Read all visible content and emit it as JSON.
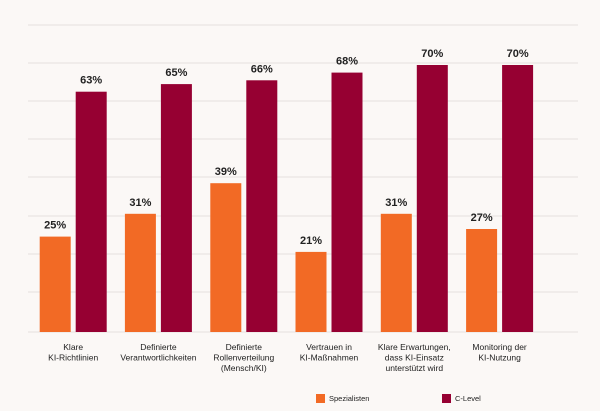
{
  "chart_data": {
    "type": "bar",
    "categories": [
      [
        "Klare",
        "KI-Richtlinien"
      ],
      [
        "Definierte",
        "Verantwortlichkeiten"
      ],
      [
        "Definierte",
        "Rollenverteilung",
        "(Mensch/KI)"
      ],
      [
        "Vertrauen in",
        "KI-Maßnahmen"
      ],
      [
        "Klare Erwartungen,",
        "dass KI-Einsatz",
        "unterstützt wird"
      ],
      [
        "Monitoring der",
        "KI-Nutzung"
      ]
    ],
    "series": [
      {
        "name": "Spezialisten",
        "color": "#f26a25",
        "values": [
          25,
          31,
          39,
          21,
          31,
          27
        ],
        "labels": [
          "25%",
          "31%",
          "39%",
          "21%",
          "31%",
          "27%"
        ]
      },
      {
        "name": "C-Level",
        "color": "#960032",
        "values": [
          63,
          65,
          66,
          68,
          70,
          70
        ],
        "labels": [
          "63%",
          "65%",
          "66%",
          "68%",
          "70%",
          "70%"
        ]
      }
    ],
    "ylim": [
      0,
      70
    ],
    "grid": true,
    "legend_position": "bottom"
  }
}
